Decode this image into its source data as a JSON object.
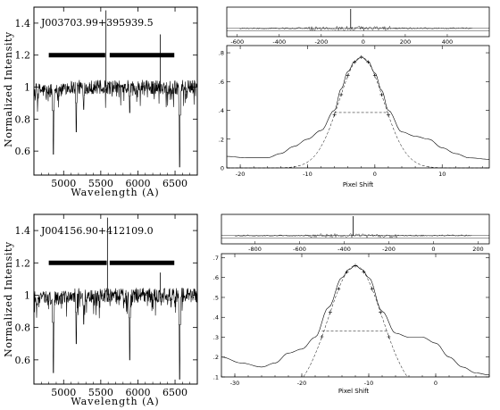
{
  "chart_data": [
    {
      "type": "line",
      "panel": "spectrum",
      "title": "J003703.99+395939.5",
      "xlabel": "Wavelength (A)",
      "ylabel": "Normalized Intensity",
      "xlim": [
        4600,
        6800
      ],
      "ylim": [
        0.45,
        1.5
      ],
      "xticks": [
        5000,
        5500,
        6000,
        6500
      ],
      "yticks": [
        0.6,
        0.8,
        1,
        1.2,
        1.4
      ],
      "continuum": 1.0,
      "bars": [
        [
          4800,
          5560
        ],
        [
          5620,
          6490
        ]
      ],
      "bar_level": 1.2,
      "spikes": [
        {
          "x": 5570,
          "y": 1.48
        },
        {
          "x": 6300,
          "y": 1.33
        }
      ],
      "absorptions": [
        {
          "x": 4861,
          "y": 0.58
        },
        {
          "x": 5170,
          "y": 0.72
        },
        {
          "x": 5270,
          "y": 0.86
        },
        {
          "x": 5890,
          "y": 0.84
        },
        {
          "x": 6563,
          "y": 0.5
        }
      ]
    },
    {
      "type": "line",
      "panel": "cross-correlation",
      "xlabel": "Pixel Shift",
      "xlim": [
        -22,
        17
      ],
      "ylim": [
        0,
        0.85
      ],
      "xticks": [
        -20,
        -10,
        0,
        10
      ],
      "yticks": [
        0,
        0.2,
        0.4,
        0.6,
        0.8
      ],
      "ytick_labels": [
        "0",
        ".2",
        ".4",
        ".6",
        ".8"
      ],
      "peak": {
        "x": -2,
        "y": 0.77
      },
      "half_width": {
        "x1": -6,
        "x2": 2,
        "y": 0.385
      },
      "gaussian_sigma": 3.3,
      "series": [
        {
          "x": [
            -22,
            -19,
            -16,
            -14,
            -12,
            -10,
            -8,
            -6,
            -5,
            -4,
            -3,
            -2,
            -1,
            0,
            1,
            2,
            4,
            6,
            8,
            10,
            12,
            14,
            17
          ],
          "values": [
            0.08,
            0.07,
            0.07,
            0.1,
            0.15,
            0.2,
            0.26,
            0.4,
            0.55,
            0.67,
            0.74,
            0.77,
            0.74,
            0.66,
            0.54,
            0.4,
            0.25,
            0.22,
            0.2,
            0.14,
            0.1,
            0.07,
            0.06
          ]
        }
      ],
      "inset": {
        "xlim": [
          -650,
          600
        ],
        "xticks": [
          -600,
          -400,
          -200,
          0,
          200,
          400
        ],
        "peak_x": -60
      }
    },
    {
      "type": "line",
      "panel": "spectrum",
      "title": "J004156.90+412109.0",
      "xlabel": "Wavelength (A)",
      "ylabel": "Normalized Intensity",
      "xlim": [
        4600,
        6800
      ],
      "ylim": [
        0.45,
        1.5
      ],
      "xticks": [
        5000,
        5500,
        6000,
        6500
      ],
      "yticks": [
        0.6,
        0.8,
        1,
        1.2,
        1.4
      ],
      "continuum": 1.0,
      "bars": [
        [
          4800,
          5580
        ],
        [
          5620,
          6490
        ]
      ],
      "bar_level": 1.2,
      "spikes": [
        {
          "x": 5590,
          "y": 1.48
        },
        {
          "x": 6300,
          "y": 1.14
        }
      ],
      "absorptions": [
        {
          "x": 4861,
          "y": 0.52
        },
        {
          "x": 5170,
          "y": 0.7
        },
        {
          "x": 5270,
          "y": 0.82
        },
        {
          "x": 5890,
          "y": 0.6
        },
        {
          "x": 6563,
          "y": 0.48
        }
      ]
    },
    {
      "type": "line",
      "panel": "cross-correlation",
      "xlabel": "Pixel Shift",
      "xlim": [
        -32,
        8
      ],
      "ylim": [
        0.1,
        0.72
      ],
      "xticks": [
        -30,
        -20,
        -10,
        0
      ],
      "yticks": [
        0.1,
        0.2,
        0.3,
        0.4,
        0.5,
        0.6,
        0.7
      ],
      "ytick_labels": [
        ".1",
        ".2",
        ".3",
        ".4",
        ".5",
        ".6",
        ".7"
      ],
      "peak": {
        "x": -12,
        "y": 0.66
      },
      "half_width": {
        "x1": -17,
        "x2": -7,
        "y": 0.33
      },
      "gaussian_sigma": 4.0,
      "series": [
        {
          "x": [
            -32,
            -29,
            -26,
            -24,
            -22,
            -20,
            -18,
            -16,
            -14,
            -13,
            -12,
            -11,
            -10,
            -8,
            -6,
            -4,
            -2,
            0,
            2,
            4,
            6,
            8
          ],
          "values": [
            0.2,
            0.17,
            0.15,
            0.17,
            0.22,
            0.24,
            0.3,
            0.45,
            0.6,
            0.64,
            0.66,
            0.64,
            0.6,
            0.43,
            0.32,
            0.3,
            0.3,
            0.27,
            0.2,
            0.15,
            0.12,
            0.11
          ]
        }
      ],
      "inset": {
        "xlim": [
          -950,
          250
        ],
        "xticks": [
          -800,
          -600,
          -400,
          -200,
          0,
          200
        ],
        "peak_x": -360
      }
    }
  ]
}
